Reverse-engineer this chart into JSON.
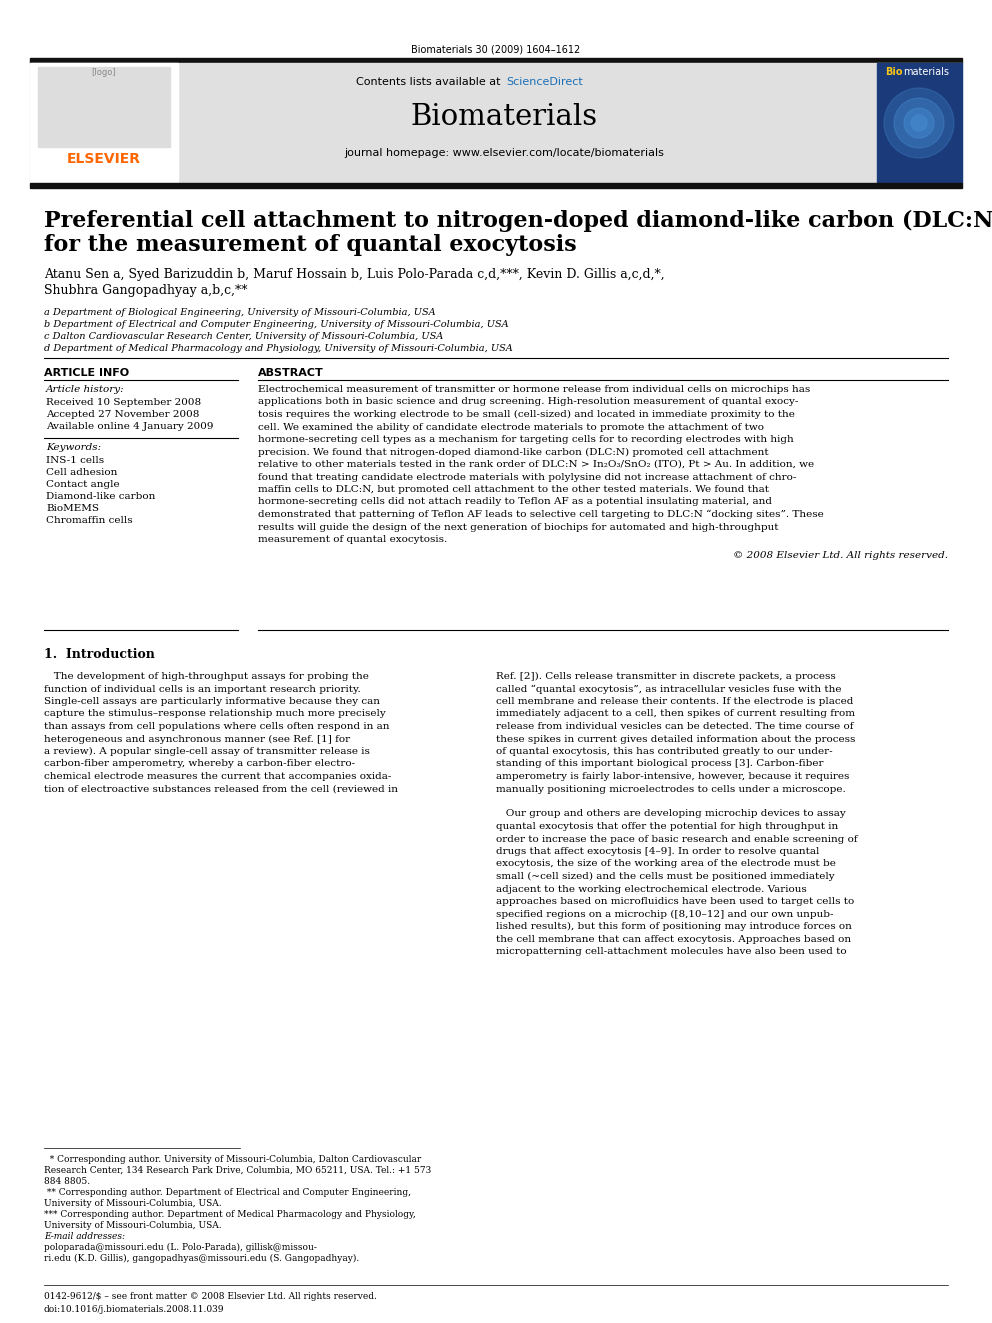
{
  "journal_ref": "Biomaterials 30 (2009) 1604–1612",
  "journal_name": "Biomaterials",
  "contents_text_pre": "Contents lists available at ",
  "contents_text_sd": "ScienceDirect",
  "sciencedirect_color": "#1a6eb5",
  "homepage_text": "journal homepage: www.elsevier.com/locate/biomaterials",
  "elsevier_color": "#FF6600",
  "title_line1": "Preferential cell attachment to nitrogen-doped diamond-like carbon (DLC:N)",
  "title_line2": "for the measurement of quantal exocytosis",
  "authors_line1": "Atanu Sen a, Syed Barizuddin b, Maruf Hossain b, Luis Polo-Parada c,d,***, Kevin D. Gillis a,c,d,*,",
  "authors_line2": "Shubhra Gangopadhyay a,b,c,**",
  "affil_a": "a Department of Biological Engineering, University of Missouri-Columbia, USA",
  "affil_b": "b Department of Electrical and Computer Engineering, University of Missouri-Columbia, USA",
  "affil_c": "c Dalton Cardiovascular Research Center, University of Missouri-Columbia, USA",
  "affil_d": "d Department of Medical Pharmacology and Physiology, University of Missouri-Columbia, USA",
  "article_info_header": "ARTICLE INFO",
  "abstract_header": "ABSTRACT",
  "article_history_label": "Article history:",
  "received": "Received 10 September 2008",
  "accepted": "Accepted 27 November 2008",
  "available": "Available online 4 January 2009",
  "keywords_label": "Keywords:",
  "keywords": [
    "INS-1 cells",
    "Cell adhesion",
    "Contact angle",
    "Diamond-like carbon",
    "BioMEMS",
    "Chromaffin cells"
  ],
  "abstract_lines": [
    "Electrochemical measurement of transmitter or hormone release from individual cells on microchips has",
    "applications both in basic science and drug screening. High-resolution measurement of quantal exocy-",
    "tosis requires the working electrode to be small (cell-sized) and located in immediate proximity to the",
    "cell. We examined the ability of candidate electrode materials to promote the attachment of two",
    "hormone-secreting cell types as a mechanism for targeting cells for to recording electrodes with high",
    "precision. We found that nitrogen-doped diamond-like carbon (DLC:N) promoted cell attachment",
    "relative to other materials tested in the rank order of DLC:N > In₂O₃/SnO₂ (ITO), Pt > Au. In addition, we",
    "found that treating candidate electrode materials with polylysine did not increase attachment of chro-",
    "maffin cells to DLC:N, but promoted cell attachment to the other tested materials. We found that",
    "hormone-secreting cells did not attach readily to Teflon AF as a potential insulating material, and",
    "demonstrated that patterning of Teflon AF leads to selective cell targeting to DLC:N “docking sites”. These",
    "results will guide the design of the next generation of biochips for automated and high-throughput",
    "measurement of quantal exocytosis."
  ],
  "copyright_text": "© 2008 Elsevier Ltd. All rights reserved.",
  "section1_header": "1.  Introduction",
  "intro_left_lines": [
    "   The development of high-throughput assays for probing the",
    "function of individual cells is an important research priority.",
    "Single-cell assays are particularly informative because they can",
    "capture the stimulus–response relationship much more precisely",
    "than assays from cell populations where cells often respond in an",
    "heterogeneous and asynchronous manner (see Ref. [1] for",
    "a review). A popular single-cell assay of transmitter release is",
    "carbon-fiber amperometry, whereby a carbon-fiber electro-",
    "chemical electrode measures the current that accompanies oxida-",
    "tion of electroactive substances released from the cell (reviewed in"
  ],
  "intro_right_lines": [
    "Ref. [2]). Cells release transmitter in discrete packets, a process",
    "called “quantal exocytosis”, as intracellular vesicles fuse with the",
    "cell membrane and release their contents. If the electrode is placed",
    "immediately adjacent to a cell, then spikes of current resulting from",
    "release from individual vesicles can be detected. The time course of",
    "these spikes in current gives detailed information about the process",
    "of quantal exocytosis, this has contributed greatly to our under-",
    "standing of this important biological process [3]. Carbon-fiber",
    "amperometry is fairly labor-intensive, however, because it requires",
    "manually positioning microelectrodes to cells under a microscope.",
    "",
    "   Our group and others are developing microchip devices to assay",
    "quantal exocytosis that offer the potential for high throughput in",
    "order to increase the pace of basic research and enable screening of",
    "drugs that affect exocytosis [4–9]. In order to resolve quantal",
    "exocytosis, the size of the working area of the electrode must be",
    "small (~cell sized) and the cells must be positioned immediately",
    "adjacent to the working electrochemical electrode. Various",
    "approaches based on microfluidics have been used to target cells to",
    "specified regions on a microchip ([8,10–12] and our own unpub-",
    "lished results), but this form of positioning may introduce forces on",
    "the cell membrane that can affect exocytosis. Approaches based on",
    "micropatterning cell-attachment molecules have also been used to"
  ],
  "footnote1": "  * Corresponding author. University of Missouri-Columbia, Dalton Cardiovascular",
  "footnote1b": "Research Center, 134 Research Park Drive, Columbia, MO 65211, USA. Tel.: +1 573",
  "footnote1c": "884 8805.",
  "footnote2": " ** Corresponding author. Department of Electrical and Computer Engineering,",
  "footnote2b": "University of Missouri-Columbia, USA.",
  "footnote3": "*** Corresponding author. Department of Medical Pharmacology and Physiology,",
  "footnote3b": "University of Missouri-Columbia, USA.",
  "email_label": "E-mail addresses: ",
  "email_body": "poloparada@missouri.edu (L. Polo-Parada), gillisk@missou-",
  "email_body2": "ri.edu (K.D. Gillis), gangopadhyas@missouri.edu (S. Gangopadhyay).",
  "footer_text1": "0142-9612/$ – see front matter © 2008 Elsevier Ltd. All rights reserved.",
  "footer_text2": "doi:10.1016/j.biomaterials.2008.11.039",
  "bg_color": "#ffffff",
  "header_bg": "#e0e0e0",
  "black_bar_color": "#111111"
}
